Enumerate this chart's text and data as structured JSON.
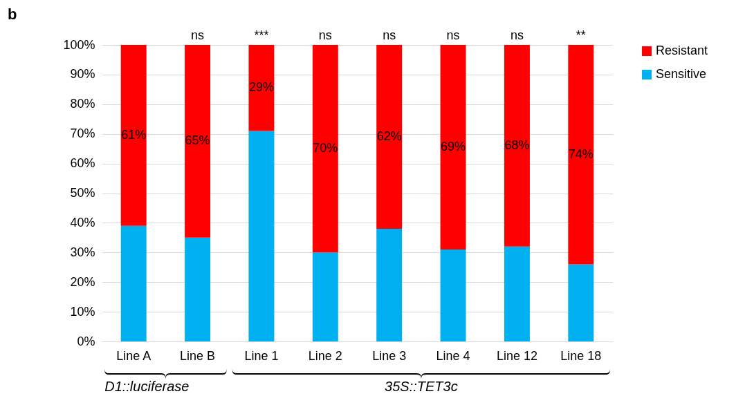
{
  "chart_data": {
    "type": "bar",
    "title": "b",
    "stacked": true,
    "categories": [
      "Line A",
      "Line B",
      "Line 1",
      "Line 2",
      "Line 3",
      "Line 4",
      "Line 12",
      "Line 18"
    ],
    "series": [
      {
        "name": "Sensitive",
        "color": "#00b0f0",
        "values": [
          39,
          35,
          71,
          30,
          38,
          31,
          32,
          26
        ]
      },
      {
        "name": "Resistant",
        "color": "#ff0000",
        "values": [
          61,
          65,
          29,
          70,
          62,
          69,
          68,
          74
        ],
        "value_labels": [
          "61%",
          "65%",
          "29%",
          "70%",
          "62%",
          "69%",
          "68%",
          "74%"
        ]
      }
    ],
    "ylim": [
      0,
      100
    ],
    "yticks": [
      {
        "value": 0,
        "label": "0%"
      },
      {
        "value": 10,
        "label": "10%"
      },
      {
        "value": 20,
        "label": "20%"
      },
      {
        "value": 30,
        "label": "30%"
      },
      {
        "value": 40,
        "label": "40%"
      },
      {
        "value": 50,
        "label": "50%"
      },
      {
        "value": 60,
        "label": "60%"
      },
      {
        "value": 70,
        "label": "70%"
      },
      {
        "value": 80,
        "label": "80%"
      },
      {
        "value": 90,
        "label": "90%"
      },
      {
        "value": 100,
        "label": "100%"
      }
    ],
    "grid": "y",
    "legend": "right",
    "annotations": [
      {
        "text": "ns",
        "x": "Line B",
        "y": 100
      },
      {
        "text": "***",
        "x": "Line 1",
        "y": 100
      },
      {
        "text": "ns",
        "x": "Line 2",
        "y": 100
      },
      {
        "text": "ns",
        "x": "Line 3",
        "y": 100
      },
      {
        "text": "ns",
        "x": "Line 4",
        "y": 100
      },
      {
        "text": "ns",
        "x": "Line 12",
        "y": 100
      },
      {
        "text": "**",
        "x": "Line 18",
        "y": 100
      },
      "D1::luciferase",
      "35S::TET3c"
    ]
  }
}
